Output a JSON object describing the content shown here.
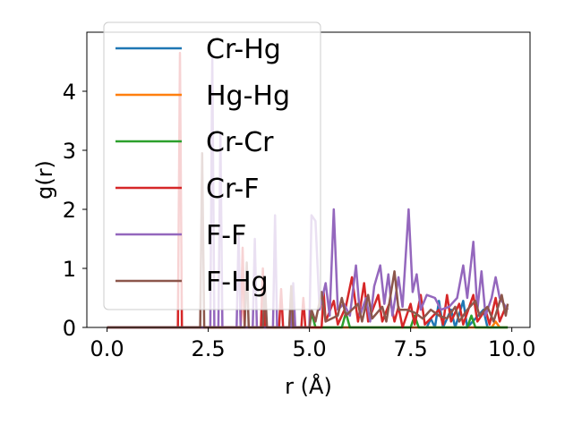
{
  "chart_data": {
    "type": "line",
    "xlabel": "r (Å)",
    "ylabel": "g(r)",
    "xlim": [
      -0.5,
      10.45
    ],
    "ylim": [
      0,
      5.0
    ],
    "xticks": [
      "0.0",
      "2.5",
      "5.0",
      "7.5",
      "10.0"
    ],
    "yticks": [
      "0",
      "1",
      "2",
      "3",
      "4"
    ],
    "legend_position": "upper-left",
    "grid": false,
    "series": [
      {
        "name": "Cr-Hg",
        "color": "#1f77b4",
        "points": [
          [
            0,
            0
          ],
          [
            7.9,
            0
          ],
          [
            8.0,
            0.15
          ],
          [
            8.1,
            0
          ],
          [
            8.2,
            0.45
          ],
          [
            8.3,
            0
          ],
          [
            8.5,
            0.3
          ],
          [
            8.6,
            0
          ],
          [
            8.8,
            0.45
          ],
          [
            8.9,
            0
          ],
          [
            9.3,
            0.3
          ],
          [
            9.4,
            0
          ],
          [
            9.9,
            0
          ]
        ]
      },
      {
        "name": "Hg-Hg",
        "color": "#ff7f0e",
        "points": [
          [
            0,
            0
          ],
          [
            9.5,
            0
          ],
          [
            9.6,
            0.1
          ],
          [
            9.7,
            0
          ],
          [
            9.9,
            0
          ]
        ]
      },
      {
        "name": "Cr-Cr",
        "color": "#2ca02c",
        "points": [
          [
            0,
            0
          ],
          [
            5.0,
            0
          ],
          [
            5.05,
            0.25
          ],
          [
            5.15,
            0
          ],
          [
            5.8,
            0
          ],
          [
            5.9,
            0.25
          ],
          [
            6.0,
            0
          ],
          [
            7.5,
            0
          ],
          [
            7.6,
            0.2
          ],
          [
            7.7,
            0
          ],
          [
            8.9,
            0
          ],
          [
            9.0,
            0.2
          ],
          [
            9.1,
            0
          ],
          [
            9.9,
            0
          ]
        ]
      },
      {
        "name": "Cr-F",
        "color": "#d62728",
        "points": [
          [
            0,
            0
          ],
          [
            1.75,
            0
          ],
          [
            1.8,
            4.65
          ],
          [
            1.85,
            0
          ],
          [
            3.3,
            0
          ],
          [
            3.35,
            1.35
          ],
          [
            3.4,
            0
          ],
          [
            3.8,
            0
          ],
          [
            3.85,
            1.0
          ],
          [
            3.9,
            0
          ],
          [
            4.25,
            0
          ],
          [
            4.3,
            0.65
          ],
          [
            4.35,
            0
          ],
          [
            4.8,
            0
          ],
          [
            4.85,
            0.5
          ],
          [
            4.9,
            0
          ],
          [
            5.3,
            0
          ],
          [
            5.35,
            0.6
          ],
          [
            5.4,
            0.1
          ],
          [
            5.6,
            0.45
          ],
          [
            5.7,
            0.05
          ],
          [
            5.9,
            0.35
          ],
          [
            6.05,
            0.85
          ],
          [
            6.2,
            0.1
          ],
          [
            6.35,
            0.75
          ],
          [
            6.45,
            0.1
          ],
          [
            6.7,
            0.55
          ],
          [
            6.8,
            0.1
          ],
          [
            7.0,
            0.45
          ],
          [
            7.1,
            0.1
          ],
          [
            7.2,
            0.35
          ],
          [
            7.3,
            0
          ],
          [
            7.5,
            0.4
          ],
          [
            7.6,
            0.05
          ],
          [
            7.75,
            0.55
          ],
          [
            7.85,
            0.05
          ],
          [
            8.2,
            0.3
          ],
          [
            8.3,
            0.05
          ],
          [
            8.4,
            0.55
          ],
          [
            8.5,
            0.1
          ],
          [
            8.7,
            0.4
          ],
          [
            8.8,
            0.05
          ],
          [
            9.05,
            0.55
          ],
          [
            9.15,
            0.1
          ],
          [
            9.35,
            0.3
          ],
          [
            9.45,
            0.05
          ],
          [
            9.6,
            0.5
          ],
          [
            9.7,
            0.1
          ],
          [
            9.85,
            0.35
          ],
          [
            9.9,
            0.3
          ]
        ]
      },
      {
        "name": "F-F",
        "color": "#9467bd",
        "points": [
          [
            0,
            0
          ],
          [
            2.55,
            0
          ],
          [
            2.6,
            4.6
          ],
          [
            2.65,
            0
          ],
          [
            2.75,
            0
          ],
          [
            2.8,
            3.3
          ],
          [
            2.85,
            0
          ],
          [
            3.2,
            0
          ],
          [
            3.25,
            1.6
          ],
          [
            3.3,
            0
          ],
          [
            3.6,
            0
          ],
          [
            3.65,
            1.5
          ],
          [
            3.7,
            0
          ],
          [
            4.1,
            0
          ],
          [
            4.15,
            1.9
          ],
          [
            4.2,
            0
          ],
          [
            4.55,
            0
          ],
          [
            4.6,
            0.75
          ],
          [
            4.65,
            0
          ],
          [
            5.0,
            0
          ],
          [
            5.05,
            1.9
          ],
          [
            5.15,
            1.8
          ],
          [
            5.25,
            0.3
          ],
          [
            5.4,
            0.75
          ],
          [
            5.5,
            0.2
          ],
          [
            5.6,
            2.0
          ],
          [
            5.7,
            0.3
          ],
          [
            5.85,
            0.4
          ],
          [
            6.0,
            0.2
          ],
          [
            6.15,
            1.05
          ],
          [
            6.25,
            0.2
          ],
          [
            6.4,
            0.5
          ],
          [
            6.5,
            0.1
          ],
          [
            6.6,
            0.7
          ],
          [
            6.75,
            1.05
          ],
          [
            6.85,
            0.4
          ],
          [
            6.95,
            0.9
          ],
          [
            7.05,
            0.2
          ],
          [
            7.2,
            0.85
          ],
          [
            7.3,
            0.35
          ],
          [
            7.45,
            2.0
          ],
          [
            7.55,
            0.6
          ],
          [
            7.65,
            0.9
          ],
          [
            7.75,
            0.3
          ],
          [
            7.9,
            0.55
          ],
          [
            8.1,
            0.5
          ],
          [
            8.25,
            0.3
          ],
          [
            8.45,
            0.35
          ],
          [
            8.65,
            0.5
          ],
          [
            8.8,
            1.05
          ],
          [
            8.9,
            0.5
          ],
          [
            9.05,
            1.45
          ],
          [
            9.15,
            0.3
          ],
          [
            9.25,
            0.95
          ],
          [
            9.35,
            0.2
          ],
          [
            9.5,
            0.5
          ],
          [
            9.6,
            0.85
          ],
          [
            9.7,
            0.5
          ],
          [
            9.85,
            0.35
          ],
          [
            9.9,
            0.3
          ]
        ]
      },
      {
        "name": "F-Hg",
        "color": "#8c564b",
        "points": [
          [
            0,
            0
          ],
          [
            2.3,
            0
          ],
          [
            2.35,
            2.95
          ],
          [
            2.4,
            0
          ],
          [
            3.4,
            0
          ],
          [
            3.45,
            1.1
          ],
          [
            3.5,
            0
          ],
          [
            3.85,
            0
          ],
          [
            3.9,
            0.75
          ],
          [
            3.95,
            0
          ],
          [
            4.5,
            0
          ],
          [
            4.55,
            0.7
          ],
          [
            4.6,
            0
          ],
          [
            5.0,
            0
          ],
          [
            5.05,
            0.3
          ],
          [
            5.15,
            0.1
          ],
          [
            5.3,
            0.6
          ],
          [
            5.4,
            0.1
          ],
          [
            5.7,
            0.2
          ],
          [
            5.8,
            0.5
          ],
          [
            5.9,
            0.2
          ],
          [
            6.2,
            0.4
          ],
          [
            6.3,
            0.1
          ],
          [
            6.45,
            0.55
          ],
          [
            6.55,
            0.15
          ],
          [
            6.8,
            0.35
          ],
          [
            6.9,
            0.1
          ],
          [
            7.1,
            0.95
          ],
          [
            7.2,
            0.3
          ],
          [
            7.4,
            0.3
          ],
          [
            7.6,
            0.25
          ],
          [
            7.8,
            0.15
          ],
          [
            8.0,
            0.3
          ],
          [
            8.2,
            0.2
          ],
          [
            8.4,
            0.15
          ],
          [
            8.6,
            0.35
          ],
          [
            8.7,
            0.1
          ],
          [
            8.9,
            0.3
          ],
          [
            9.1,
            0.45
          ],
          [
            9.2,
            0.2
          ],
          [
            9.4,
            0.35
          ],
          [
            9.55,
            0.1
          ],
          [
            9.75,
            0.55
          ],
          [
            9.85,
            0.2
          ],
          [
            9.9,
            0.4
          ]
        ]
      }
    ]
  }
}
